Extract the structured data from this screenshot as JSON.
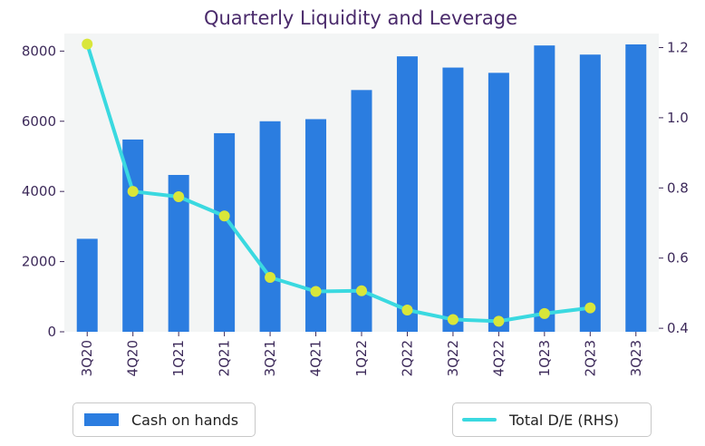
{
  "chart_data": {
    "type": "bar+line",
    "title": "Quarterly Liquidity and Leverage",
    "categories": [
      "3Q20",
      "4Q20",
      "1Q21",
      "2Q21",
      "3Q21",
      "4Q21",
      "1Q22",
      "2Q22",
      "3Q22",
      "4Q22",
      "1Q23",
      "2Q23",
      "3Q23"
    ],
    "series": [
      {
        "name": "Cash on hands",
        "type": "bar",
        "axis": "left",
        "color": "#2b7de0",
        "values": [
          2650,
          5480,
          4470,
          5660,
          6000,
          6060,
          6890,
          7850,
          7530,
          7380,
          8160,
          7900,
          8190
        ]
      },
      {
        "name": "Total D/E (RHS)",
        "type": "line",
        "axis": "right",
        "color": "#3ad9e0",
        "marker_color": "#d9e63a",
        "values": [
          1.21,
          0.79,
          0.775,
          0.72,
          0.545,
          0.505,
          0.507,
          0.452,
          0.425,
          0.42,
          0.442,
          0.458,
          null
        ]
      }
    ],
    "y_left": {
      "min": 0,
      "max": 8500,
      "ticks": [
        0,
        2000,
        4000,
        6000,
        8000
      ]
    },
    "y_right": {
      "min": 0.39,
      "max": 1.24,
      "ticks": [
        "0.4",
        "0.6",
        "0.8",
        "1.0",
        "1.2"
      ],
      "tick_values": [
        0.4,
        0.6,
        0.8,
        1.0,
        1.2
      ]
    },
    "grid": false,
    "legend": [
      "Cash on hands",
      "Total D/E (RHS)"
    ],
    "legend_placement": "bottom"
  }
}
